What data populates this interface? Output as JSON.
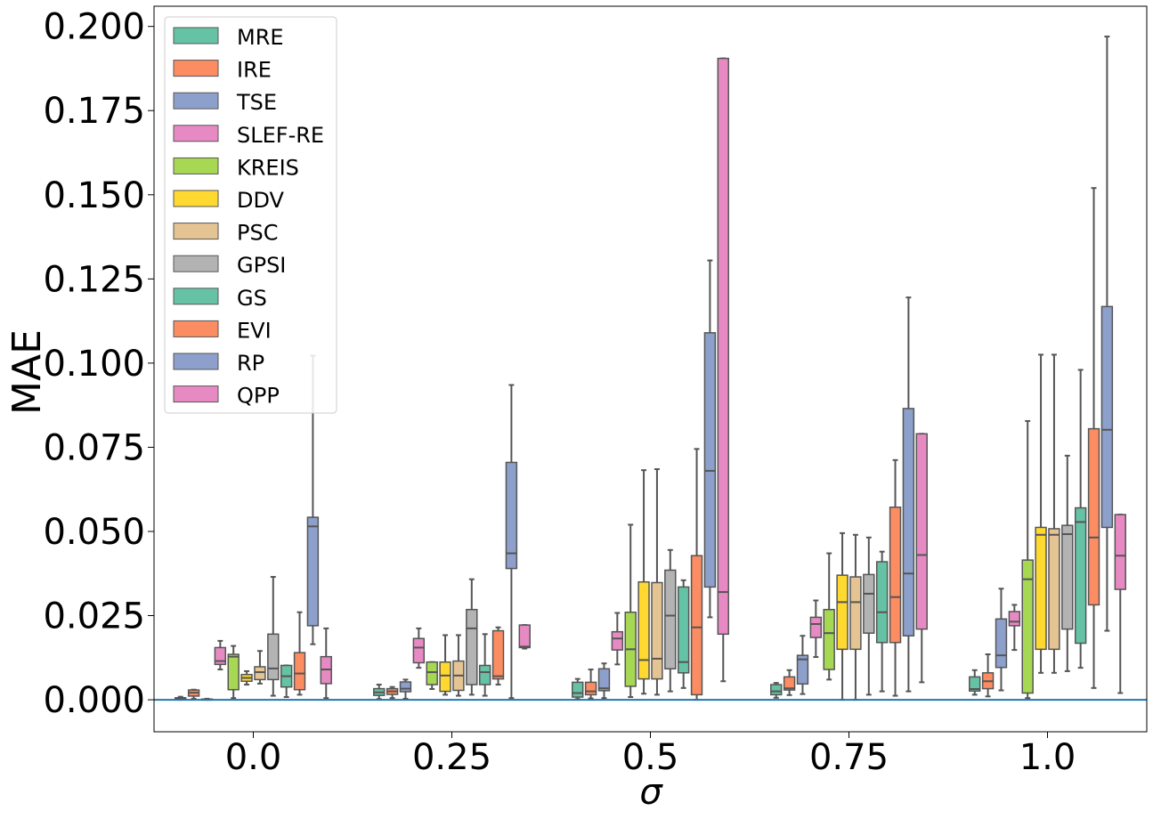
{
  "chart_data": {
    "type": "boxplot",
    "xlabel": "σ",
    "ylabel": "MAE",
    "ylim": [
      -0.0095,
      0.206
    ],
    "yticks": [
      0.0,
      0.025,
      0.05,
      0.075,
      0.1,
      0.125,
      0.15,
      0.175,
      0.2
    ],
    "ytick_labels": [
      "0.000",
      "0.025",
      "0.050",
      "0.075",
      "0.100",
      "0.125",
      "0.150",
      "0.175",
      "0.200"
    ],
    "categories": [
      "0.0",
      "0.25",
      "0.5",
      "0.75",
      "1.0"
    ],
    "reference_line": 0.0,
    "reference_color": "#1f77b4",
    "legend_position": "top-left",
    "series": [
      {
        "name": "MRE",
        "color": "#66c2a5",
        "stats": [
          {
            "whislo": 0.0,
            "q1": 0.0,
            "med": 0.0002,
            "q3": 0.0006,
            "whishi": 0.0009
          },
          {
            "whislo": 0.0002,
            "q1": 0.0013,
            "med": 0.0022,
            "q3": 0.0033,
            "whishi": 0.0045
          },
          {
            "whislo": 0.0002,
            "q1": 0.0008,
            "med": 0.002,
            "q3": 0.0052,
            "whishi": 0.0062
          },
          {
            "whislo": 0.0006,
            "q1": 0.0015,
            "med": 0.0025,
            "q3": 0.0045,
            "whishi": 0.005
          },
          {
            "whislo": 0.0015,
            "q1": 0.0026,
            "med": 0.0032,
            "q3": 0.0068,
            "whishi": 0.0088
          }
        ]
      },
      {
        "name": "IRE",
        "color": "#fc8d62",
        "stats": [
          {
            "whislo": 0.0003,
            "q1": 0.0011,
            "med": 0.0021,
            "q3": 0.0029,
            "whishi": 0.003
          },
          {
            "whislo": 0.0005,
            "q1": 0.0016,
            "med": 0.0025,
            "q3": 0.0033,
            "whishi": 0.0038
          },
          {
            "whislo": 0.0004,
            "q1": 0.0015,
            "med": 0.0025,
            "q3": 0.0052,
            "whishi": 0.009
          },
          {
            "whislo": 0.0014,
            "q1": 0.0029,
            "med": 0.0034,
            "q3": 0.0068,
            "whishi": 0.0088
          },
          {
            "whislo": 0.001,
            "q1": 0.0033,
            "med": 0.0055,
            "q3": 0.008,
            "whishi": 0.0135
          }
        ]
      },
      {
        "name": "TSE",
        "color": "#8da0cb",
        "stats": [
          {
            "whislo": 0.0,
            "q1": 0.0,
            "med": 0.0,
            "q3": 0.0002,
            "whishi": 0.0003
          },
          {
            "whislo": 0.0003,
            "q1": 0.0024,
            "med": 0.0033,
            "q3": 0.0053,
            "whishi": 0.006
          },
          {
            "whislo": 0.0005,
            "q1": 0.0027,
            "med": 0.0034,
            "q3": 0.0092,
            "whishi": 0.0108
          },
          {
            "whislo": 0.0017,
            "q1": 0.0047,
            "med": 0.012,
            "q3": 0.0132,
            "whishi": 0.019
          },
          {
            "whislo": 0.0028,
            "q1": 0.0096,
            "med": 0.0132,
            "q3": 0.024,
            "whishi": 0.033
          }
        ]
      },
      {
        "name": "SLEF-RE",
        "color": "#e78ac3",
        "stats": [
          {
            "whislo": 0.009,
            "q1": 0.0105,
            "med": 0.0115,
            "q3": 0.0155,
            "whishi": 0.0175
          },
          {
            "whislo": 0.0095,
            "q1": 0.011,
            "med": 0.0155,
            "q3": 0.0182,
            "whishi": 0.0212
          },
          {
            "whislo": 0.0105,
            "q1": 0.0148,
            "med": 0.0182,
            "q3": 0.0202,
            "whishi": 0.0258
          },
          {
            "whislo": 0.0127,
            "q1": 0.0185,
            "med": 0.0225,
            "q3": 0.0245,
            "whishi": 0.0295
          },
          {
            "whislo": 0.0148,
            "q1": 0.022,
            "med": 0.0232,
            "q3": 0.0262,
            "whishi": 0.0282
          }
        ]
      },
      {
        "name": "KREIS",
        "color": "#a6d854",
        "stats": [
          {
            "whislo": 0.0005,
            "q1": 0.003,
            "med": 0.0128,
            "q3": 0.0135,
            "whishi": 0.016
          },
          {
            "whislo": 0.0032,
            "q1": 0.0045,
            "med": 0.0082,
            "q3": 0.0112,
            "whishi": 0.0112
          },
          {
            "whislo": 0.0008,
            "q1": 0.004,
            "med": 0.015,
            "q3": 0.026,
            "whishi": 0.052
          },
          {
            "whislo": 0.006,
            "q1": 0.009,
            "med": 0.0198,
            "q3": 0.0268,
            "whishi": 0.0435
          },
          {
            "whislo": 0.0005,
            "q1": 0.002,
            "med": 0.0358,
            "q3": 0.0415,
            "whishi": 0.0828
          }
        ]
      },
      {
        "name": "DDV",
        "color": "#ffd92f",
        "stats": [
          {
            "whislo": 0.0045,
            "q1": 0.0055,
            "med": 0.0065,
            "q3": 0.0075,
            "whishi": 0.0085
          },
          {
            "whislo": 0.0015,
            "q1": 0.0025,
            "med": 0.0072,
            "q3": 0.0112,
            "whishi": 0.0192
          },
          {
            "whislo": 0.0018,
            "q1": 0.0062,
            "med": 0.0118,
            "q3": 0.035,
            "whishi": 0.0682
          },
          {
            "whislo": 0.0,
            "q1": 0.015,
            "med": 0.029,
            "q3": 0.037,
            "whishi": 0.0495
          },
          {
            "whislo": 0.008,
            "q1": 0.015,
            "med": 0.049,
            "q3": 0.0512,
            "whishi": 0.1025
          }
        ]
      },
      {
        "name": "PSC",
        "color": "#e5c494",
        "stats": [
          {
            "whislo": 0.0048,
            "q1": 0.006,
            "med": 0.0082,
            "q3": 0.0098,
            "whishi": 0.0145
          },
          {
            "whislo": 0.0012,
            "q1": 0.0028,
            "med": 0.0072,
            "q3": 0.0115,
            "whishi": 0.0192
          },
          {
            "whislo": 0.0015,
            "q1": 0.0062,
            "med": 0.0122,
            "q3": 0.0348,
            "whishi": 0.0685
          },
          {
            "whislo": 0.0,
            "q1": 0.015,
            "med": 0.029,
            "q3": 0.0365,
            "whishi": 0.049
          },
          {
            "whislo": 0.008,
            "q1": 0.015,
            "med": 0.049,
            "q3": 0.0508,
            "whishi": 0.1025
          }
        ]
      },
      {
        "name": "GPSI",
        "color": "#b3b3b3",
        "stats": [
          {
            "whislo": 0.0012,
            "q1": 0.006,
            "med": 0.0093,
            "q3": 0.0195,
            "whishi": 0.0365
          },
          {
            "whislo": 0.0015,
            "q1": 0.0045,
            "med": 0.0212,
            "q3": 0.0268,
            "whishi": 0.0358
          },
          {
            "whislo": 0.0025,
            "q1": 0.0092,
            "med": 0.025,
            "q3": 0.0385,
            "whishi": 0.0445
          },
          {
            "whislo": 0.0015,
            "q1": 0.0198,
            "med": 0.0315,
            "q3": 0.0372,
            "whishi": 0.0482
          },
          {
            "whislo": 0.0085,
            "q1": 0.021,
            "med": 0.0492,
            "q3": 0.0518,
            "whishi": 0.0725
          }
        ]
      },
      {
        "name": "GS",
        "color": "#66c2a5",
        "stats": [
          {
            "whislo": 0.0008,
            "q1": 0.0038,
            "med": 0.007,
            "q3": 0.0102,
            "whishi": 0.0102
          },
          {
            "whislo": 0.0012,
            "q1": 0.0045,
            "med": 0.0082,
            "q3": 0.0102,
            "whishi": 0.0195
          },
          {
            "whislo": 0.0035,
            "q1": 0.008,
            "med": 0.0112,
            "q3": 0.0335,
            "whishi": 0.0355
          },
          {
            "whislo": 0.0025,
            "q1": 0.017,
            "med": 0.026,
            "q3": 0.041,
            "whishi": 0.044
          },
          {
            "whislo": 0.0095,
            "q1": 0.0168,
            "med": 0.0528,
            "q3": 0.057,
            "whishi": 0.098
          }
        ]
      },
      {
        "name": "EVI",
        "color": "#fc8d62",
        "stats": [
          {
            "whislo": 0.0015,
            "q1": 0.003,
            "med": 0.0078,
            "q3": 0.014,
            "whishi": 0.026
          },
          {
            "whislo": 0.0045,
            "q1": 0.0062,
            "med": 0.007,
            "q3": 0.0205,
            "whishi": 0.0215
          },
          {
            "whislo": 0.0,
            "q1": 0.0015,
            "med": 0.0215,
            "q3": 0.0428,
            "whishi": 0.0745
          },
          {
            "whislo": 0.0012,
            "q1": 0.017,
            "med": 0.0305,
            "q3": 0.0572,
            "whishi": 0.0712
          },
          {
            "whislo": 0.0035,
            "q1": 0.0282,
            "med": 0.0482,
            "q3": 0.0805,
            "whishi": 0.152
          }
        ]
      },
      {
        "name": "RP",
        "color": "#8da0cb",
        "stats": [
          {
            "whislo": 0.0165,
            "q1": 0.022,
            "med": 0.0515,
            "q3": 0.0542,
            "whishi": 0.1022
          },
          {
            "whislo": 0.0005,
            "q1": 0.039,
            "med": 0.0435,
            "q3": 0.0705,
            "whishi": 0.0935
          },
          {
            "whislo": 0.0245,
            "q1": 0.0335,
            "med": 0.068,
            "q3": 0.109,
            "whishi": 0.1305
          },
          {
            "whislo": 0.0025,
            "q1": 0.019,
            "med": 0.0375,
            "q3": 0.0865,
            "whishi": 0.1195
          },
          {
            "whislo": 0.0205,
            "q1": 0.0512,
            "med": 0.0802,
            "q3": 0.1168,
            "whishi": 0.197
          }
        ]
      },
      {
        "name": "QPP",
        "color": "#e78ac3",
        "stats": [
          {
            "whislo": 0.0005,
            "q1": 0.0048,
            "med": 0.009,
            "q3": 0.0128,
            "whishi": 0.0212
          },
          {
            "whislo": 0.0152,
            "q1": 0.0155,
            "med": 0.0158,
            "q3": 0.0222,
            "whishi": 0.0222
          },
          {
            "whislo": 0.0055,
            "q1": 0.0195,
            "med": 0.032,
            "q3": 0.1905,
            "whishi": 0.1905
          },
          {
            "whislo": 0.0052,
            "q1": 0.021,
            "med": 0.043,
            "q3": 0.079,
            "whishi": 0.079
          },
          {
            "whislo": 0.002,
            "q1": 0.0328,
            "med": 0.0428,
            "q3": 0.055,
            "whishi": 0.055
          }
        ]
      }
    ]
  }
}
